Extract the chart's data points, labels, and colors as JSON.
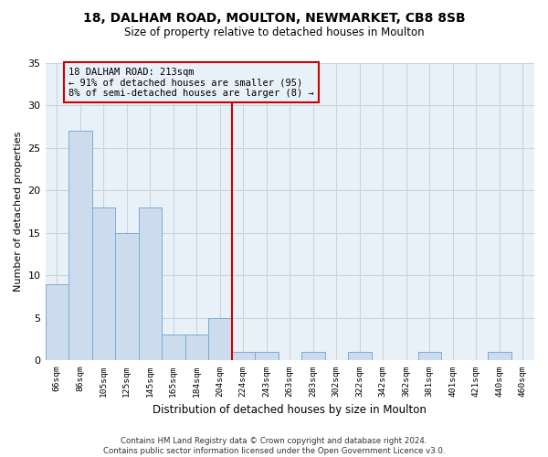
{
  "title1": "18, DALHAM ROAD, MOULTON, NEWMARKET, CB8 8SB",
  "title2": "Size of property relative to detached houses in Moulton",
  "xlabel": "Distribution of detached houses by size in Moulton",
  "ylabel": "Number of detached properties",
  "categories": [
    "66sqm",
    "86sqm",
    "105sqm",
    "125sqm",
    "145sqm",
    "165sqm",
    "184sqm",
    "204sqm",
    "224sqm",
    "243sqm",
    "263sqm",
    "283sqm",
    "302sqm",
    "322sqm",
    "342sqm",
    "362sqm",
    "381sqm",
    "401sqm",
    "421sqm",
    "440sqm",
    "460sqm"
  ],
  "values": [
    9,
    27,
    18,
    15,
    18,
    3,
    3,
    5,
    1,
    1,
    0,
    1,
    0,
    1,
    0,
    0,
    1,
    0,
    0,
    1,
    0
  ],
  "bar_color": "#ccdcee",
  "bar_edge_color": "#7aadd4",
  "grid_color": "#c8d4e0",
  "vline_x_index": 7.5,
  "vline_color": "#cc0000",
  "annotation_text": "18 DALHAM ROAD: 213sqm\n← 91% of detached houses are smaller (95)\n8% of semi-detached houses are larger (8) →",
  "annotation_box_color": "#cc0000",
  "ylim": [
    0,
    35
  ],
  "yticks": [
    0,
    5,
    10,
    15,
    20,
    25,
    30,
    35
  ],
  "footer": "Contains HM Land Registry data © Crown copyright and database right 2024.\nContains public sector information licensed under the Open Government Licence v3.0.",
  "bg_color": "#ffffff",
  "plot_bg_color": "#e8f0f8"
}
